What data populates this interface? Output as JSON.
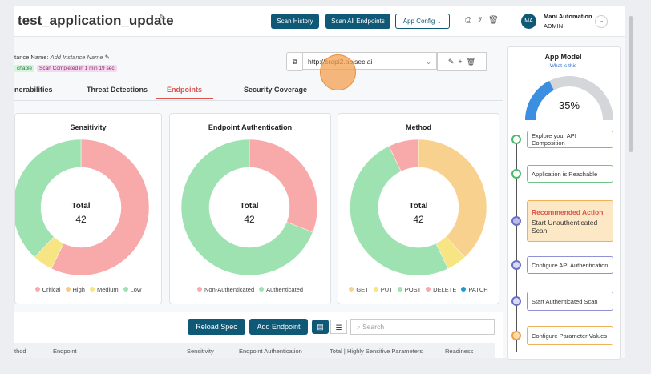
{
  "header": {
    "title": "test_application_update",
    "buttons": [
      "Scan History",
      "Scan All Endpoints"
    ],
    "app_config": "App Config",
    "user": {
      "initials": "MA",
      "name": "Mani Automation",
      "role": "ADMIN"
    }
  },
  "instance": {
    "label": "tance Name:",
    "placeholder": "Add Instance Name",
    "badges": [
      "chable",
      "Scan Completed in 1 min 19 sec"
    ]
  },
  "url": "http://crapi2.apisec.ai",
  "tabs": [
    "nerabilities",
    "Threat Detections",
    "Endpoints",
    "Security Coverage"
  ],
  "active_tab": 2,
  "charts": [
    {
      "type": "donut",
      "title": "Sensitivity",
      "total_label": "Total",
      "total": 42,
      "categories": [
        "Critical",
        "High",
        "Medium",
        "Low"
      ],
      "colors": [
        "#f8a9aa",
        "#f8c98a",
        "#f6e582",
        "#9fe2b1"
      ],
      "values": [
        24,
        0,
        2,
        16
      ]
    },
    {
      "type": "donut",
      "title": "Endpoint Authentication",
      "total_label": "Total",
      "total": 42,
      "categories": [
        "Non-Authenticated",
        "Authenticated"
      ],
      "colors": [
        "#f8a9aa",
        "#9fe2b1"
      ],
      "values": [
        13,
        29
      ]
    },
    {
      "type": "donut",
      "title": "Method",
      "total_label": "Total",
      "total": 42,
      "categories": [
        "GET",
        "PUT",
        "POST",
        "DELETE",
        "PATCH"
      ],
      "colors": [
        "#f9d18f",
        "#f6e582",
        "#9fe2b1",
        "#f8a9aa",
        "#1b9ad6"
      ],
      "values": [
        16,
        2,
        21,
        3,
        0
      ]
    }
  ],
  "toolbar": {
    "buttons": [
      "Reload Spec",
      "Add Endpoint"
    ],
    "search_placeholder": "Search"
  },
  "table": {
    "columns": [
      "thod",
      "Endpoint",
      "Sensitivity",
      "Endpoint Authentication",
      "Total | Highly Sensitive Parameters",
      "Readiness"
    ]
  },
  "app_model": {
    "title": "App Model",
    "help": "What is this",
    "progress": 35,
    "progress_label": "35%",
    "recommended": "Recommended Action",
    "steps": [
      {
        "text": "Explore your API Composition",
        "status": "done"
      },
      {
        "text": "Application is Reachable",
        "status": "done"
      },
      {
        "text": "Start Unauthenticated Scan",
        "status": "recommended"
      },
      {
        "text": "Configure API Authentication",
        "status": "todo"
      },
      {
        "text": "Start Authenticated Scan",
        "status": "todo"
      },
      {
        "text": "Configure Parameter Values",
        "status": "warn"
      }
    ]
  }
}
